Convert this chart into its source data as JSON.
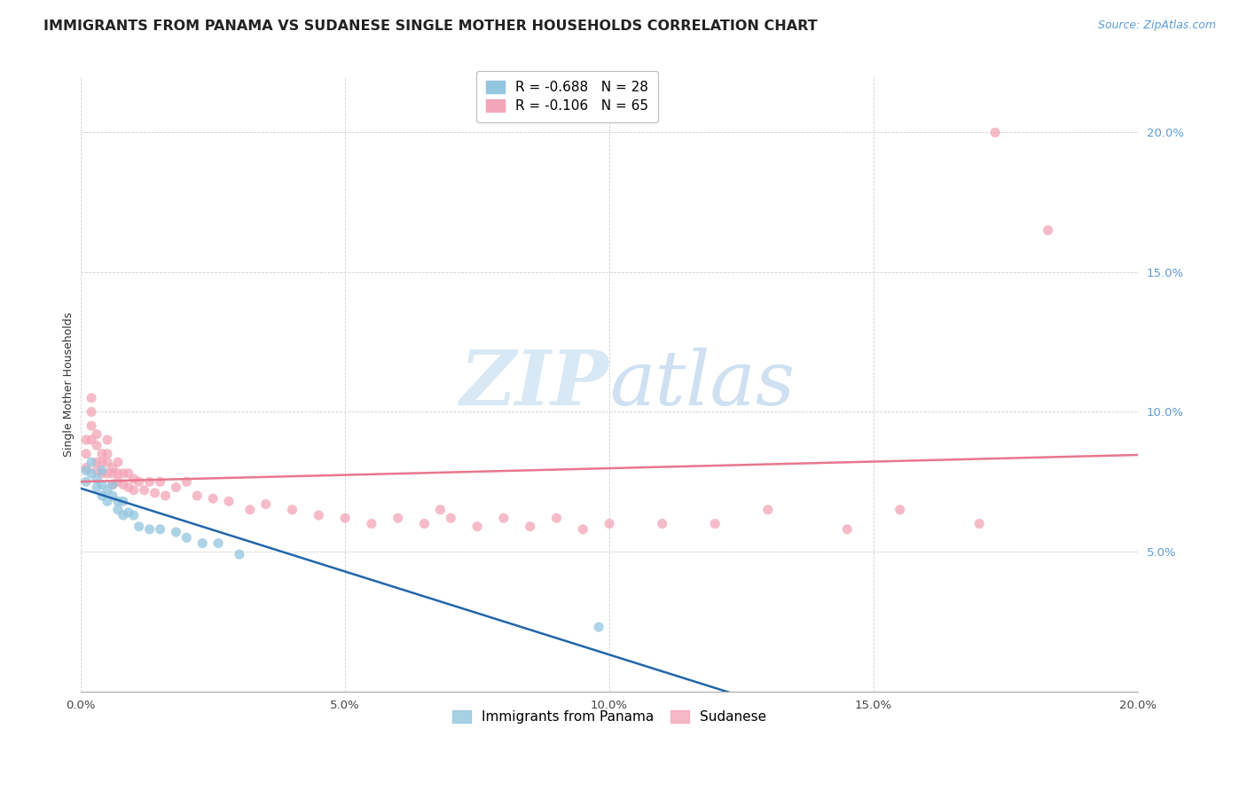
{
  "title": "IMMIGRANTS FROM PANAMA VS SUDANESE SINGLE MOTHER HOUSEHOLDS CORRELATION CHART",
  "source_text": "Source: ZipAtlas.com",
  "ylabel": "Single Mother Households",
  "xlim": [
    0.0,
    0.2
  ],
  "ylim": [
    0.0,
    0.22
  ],
  "xtick_labels": [
    "0.0%",
    "5.0%",
    "10.0%",
    "15.0%",
    "20.0%"
  ],
  "xtick_vals": [
    0.0,
    0.05,
    0.1,
    0.15,
    0.2
  ],
  "ytick_labels": [
    "5.0%",
    "10.0%",
    "15.0%",
    "20.0%"
  ],
  "ytick_vals": [
    0.05,
    0.1,
    0.15,
    0.2
  ],
  "blue_color": "#92c5de",
  "pink_color": "#f4a5b8",
  "blue_line_color": "#2166ac",
  "pink_line_color": "#e8768e",
  "blue_R": -0.688,
  "blue_N": 28,
  "pink_R": -0.106,
  "pink_N": 65,
  "legend_label_blue": "Immigrants from Panama",
  "legend_label_pink": "Sudanese",
  "watermark_zip": "ZIP",
  "watermark_atlas": "atlas",
  "blue_scatter_x": [
    0.001,
    0.001,
    0.002,
    0.002,
    0.003,
    0.003,
    0.004,
    0.004,
    0.004,
    0.005,
    0.005,
    0.006,
    0.006,
    0.007,
    0.007,
    0.008,
    0.008,
    0.009,
    0.01,
    0.011,
    0.013,
    0.015,
    0.018,
    0.02,
    0.023,
    0.026,
    0.03,
    0.098
  ],
  "blue_scatter_y": [
    0.079,
    0.075,
    0.082,
    0.078,
    0.076,
    0.073,
    0.079,
    0.074,
    0.07,
    0.072,
    0.068,
    0.074,
    0.07,
    0.068,
    0.065,
    0.068,
    0.063,
    0.064,
    0.063,
    0.059,
    0.058,
    0.058,
    0.057,
    0.055,
    0.053,
    0.053,
    0.049,
    0.023
  ],
  "pink_scatter_x": [
    0.001,
    0.001,
    0.001,
    0.002,
    0.002,
    0.002,
    0.002,
    0.003,
    0.003,
    0.003,
    0.003,
    0.004,
    0.004,
    0.004,
    0.005,
    0.005,
    0.005,
    0.005,
    0.006,
    0.006,
    0.006,
    0.007,
    0.007,
    0.007,
    0.008,
    0.008,
    0.009,
    0.009,
    0.01,
    0.01,
    0.011,
    0.012,
    0.013,
    0.014,
    0.015,
    0.016,
    0.018,
    0.02,
    0.022,
    0.025,
    0.028,
    0.032,
    0.035,
    0.04,
    0.045,
    0.05,
    0.055,
    0.06,
    0.065,
    0.068,
    0.07,
    0.075,
    0.08,
    0.085,
    0.09,
    0.095,
    0.1,
    0.11,
    0.12,
    0.13,
    0.145,
    0.155,
    0.17,
    0.173,
    0.183
  ],
  "pink_scatter_y": [
    0.09,
    0.085,
    0.08,
    0.105,
    0.1,
    0.095,
    0.09,
    0.092,
    0.088,
    0.082,
    0.079,
    0.085,
    0.082,
    0.078,
    0.085,
    0.082,
    0.078,
    0.09,
    0.08,
    0.078,
    0.074,
    0.082,
    0.078,
    0.075,
    0.078,
    0.074,
    0.078,
    0.073,
    0.076,
    0.072,
    0.075,
    0.072,
    0.075,
    0.071,
    0.075,
    0.07,
    0.073,
    0.075,
    0.07,
    0.069,
    0.068,
    0.065,
    0.067,
    0.065,
    0.063,
    0.062,
    0.06,
    0.062,
    0.06,
    0.065,
    0.062,
    0.059,
    0.062,
    0.059,
    0.062,
    0.058,
    0.06,
    0.06,
    0.06,
    0.065,
    0.058,
    0.065,
    0.06,
    0.2,
    0.165
  ],
  "title_fontsize": 11.5,
  "axis_label_fontsize": 9,
  "tick_fontsize": 9.5,
  "legend_fontsize": 11
}
